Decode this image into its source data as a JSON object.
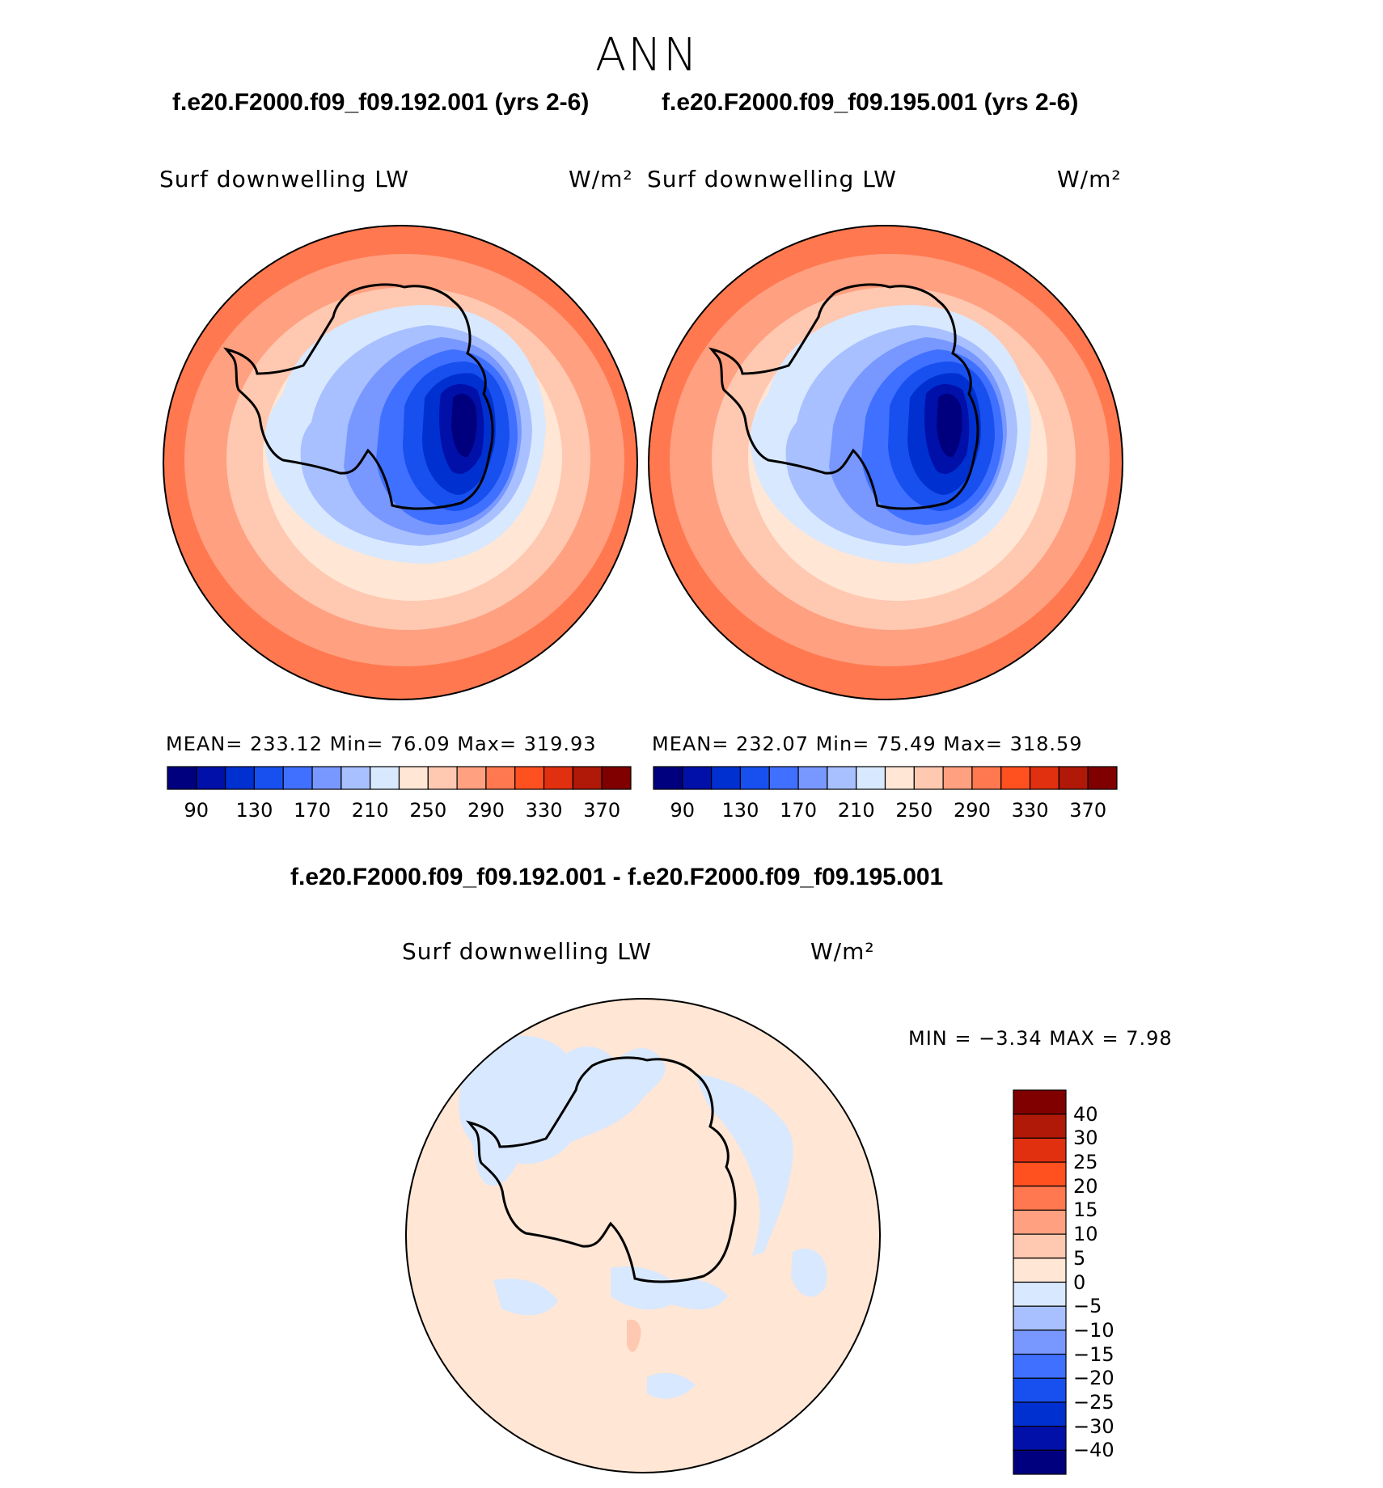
{
  "season": "ANN",
  "panels": [
    {
      "case_title": "f.e20.F2000.f09_f09.192.001 (yrs 2-6)",
      "variable": "Surf downwelling LW",
      "units": "W/m²",
      "stats": "MEAN=  233.12   Min=   76.09   Max=  319.93"
    },
    {
      "case_title": "f.e20.F2000.f09_f09.195.001 (yrs 2-6)",
      "variable": "Surf downwelling LW",
      "units": "W/m²",
      "stats": "MEAN=  232.07   Min=   75.49   Max=  318.59"
    }
  ],
  "diff": {
    "title": "f.e20.F2000.f09_f09.192.001 - f.e20.F2000.f09_f09.195.001",
    "variable": "Surf downwelling LW",
    "units": "W/m²",
    "minmax": "MIN  =    −3.34  MAX  =     7.98"
  },
  "chart_data": {
    "type": "heatmap",
    "projection": "south polar stereographic",
    "field_colorbar": {
      "orientation": "horizontal",
      "tick_labels": [
        "90",
        "130",
        "170",
        "210",
        "250",
        "290",
        "330",
        "370"
      ],
      "colors": [
        "#00007f",
        "#0010a8",
        "#0030d0",
        "#1850f0",
        "#4070ff",
        "#7898ff",
        "#a8c0ff",
        "#d8e8ff",
        "#ffe6d5",
        "#ffc8b0",
        "#ffa080",
        "#ff7850",
        "#ff5020",
        "#e03010",
        "#b01808",
        "#800000"
      ]
    },
    "diff_colorbar": {
      "orientation": "vertical",
      "tick_labels": [
        "40",
        "30",
        "25",
        "20",
        "15",
        "10",
        "5",
        "0",
        "−5",
        "−10",
        "−15",
        "−20",
        "−25",
        "−30",
        "−40"
      ],
      "colors": [
        "#800000",
        "#b01808",
        "#e03010",
        "#ff5020",
        "#ff7850",
        "#ffa080",
        "#ffc8b0",
        "#ffe6d5",
        "#d8e8ff",
        "#a8c0ff",
        "#7898ff",
        "#4070ff",
        "#1850f0",
        "#0030d0",
        "#0010a8",
        "#00007f"
      ]
    },
    "panels": [
      {
        "mean": 233.12,
        "min": 76.09,
        "max": 319.93
      },
      {
        "mean": 232.07,
        "min": 75.49,
        "max": 318.59
      }
    ],
    "diff": {
      "min": -3.34,
      "max": 7.98
    }
  }
}
